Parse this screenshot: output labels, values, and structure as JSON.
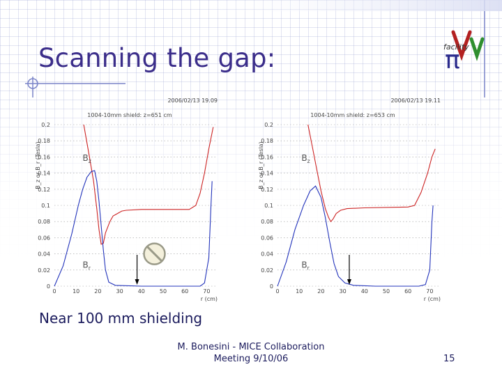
{
  "slide": {
    "title": "Scanning the gap:",
    "caption": "Near 100 mm shielding",
    "footer_line1": "M. Bonesini - MICE Collaboration",
    "footer_line2": "Meeting 9/10/06",
    "page_number": "15",
    "logo_text": "facility",
    "logo_symbol": "π"
  },
  "colors": {
    "title": "#3b2d8a",
    "bz": "#cc2222",
    "br": "#2233bb",
    "arrow": "#000000"
  },
  "chart_data": [
    {
      "type": "line",
      "timestamp": "2006/02/13 19.09",
      "plot_title": "1004-10mm shield: z=651 cm",
      "ylabel": "B_z or B_r (Tesla)",
      "xlabel": "r (cm)",
      "ylim": [
        0,
        0.2
      ],
      "xlim": [
        0,
        75
      ],
      "yticks": [
        "0.2",
        "0.18",
        "0.16",
        "0.14",
        "0.12",
        "0.1",
        "0.08",
        "0.06",
        "0.04",
        "0.02",
        "0"
      ],
      "xticks": [
        "0",
        "10",
        "20",
        "30",
        "40",
        "50",
        "60",
        "70"
      ],
      "arrow_at_r": 38,
      "symbol_at": [
        46,
        0.04
      ],
      "series": [
        {
          "name": "Bz",
          "label": "B_z",
          "color": "#cc2222",
          "label_at": [
            13,
            0.155
          ],
          "points": [
            [
              13.5,
              0.2
            ],
            [
              16,
              0.162
            ],
            [
              18,
              0.13
            ],
            [
              19.5,
              0.096
            ],
            [
              20.5,
              0.07
            ],
            [
              21.5,
              0.052
            ],
            [
              22.5,
              0.053
            ],
            [
              23.5,
              0.066
            ],
            [
              25.5,
              0.08
            ],
            [
              27,
              0.087
            ],
            [
              29,
              0.09
            ],
            [
              31,
              0.093
            ],
            [
              33,
              0.094
            ],
            [
              40,
              0.095
            ],
            [
              55,
              0.095
            ],
            [
              62,
              0.095
            ],
            [
              65,
              0.1
            ],
            [
              67,
              0.115
            ],
            [
              69,
              0.14
            ],
            [
              71,
              0.17
            ],
            [
              73,
              0.197
            ]
          ]
        },
        {
          "name": "Br",
          "label": "B_r",
          "color": "#2233bb",
          "label_at": [
            13,
            0.023
          ],
          "points": [
            [
              0,
              0
            ],
            [
              4,
              0.025
            ],
            [
              8,
              0.065
            ],
            [
              11,
              0.1
            ],
            [
              13,
              0.12
            ],
            [
              15,
              0.135
            ],
            [
              17,
              0.142
            ],
            [
              18.5,
              0.143
            ],
            [
              19.5,
              0.13
            ],
            [
              20.5,
              0.105
            ],
            [
              21.5,
              0.075
            ],
            [
              22.5,
              0.045
            ],
            [
              23.5,
              0.02
            ],
            [
              25,
              0.005
            ],
            [
              28,
              0.001
            ],
            [
              40,
              0
            ],
            [
              60,
              0
            ],
            [
              67,
              0
            ],
            [
              69,
              0.004
            ],
            [
              71,
              0.035
            ],
            [
              72,
              0.1
            ],
            [
              72.5,
              0.13
            ]
          ]
        }
      ]
    },
    {
      "type": "line",
      "timestamp": "2006/02/13 19.11",
      "plot_title": "1004-10mm shield: z=653 cm",
      "ylabel": "B_z or B_r (Tesla)",
      "xlabel": "r (cm)",
      "ylim": [
        0,
        0.2
      ],
      "xlim": [
        0,
        75
      ],
      "yticks": [
        "0.2",
        "0.18",
        "0.16",
        "0.14",
        "0.12",
        "0.1",
        "0.08",
        "0.06",
        "0.04",
        "0.02",
        "0"
      ],
      "xticks": [
        "0",
        "10",
        "20",
        "30",
        "40",
        "50",
        "60",
        "70"
      ],
      "arrow_at_r": 33,
      "series": [
        {
          "name": "Bz",
          "label": "B_z",
          "color": "#cc2222",
          "label_at": [
            11,
            0.155
          ],
          "points": [
            [
              14,
              0.2
            ],
            [
              16,
              0.173
            ],
            [
              18,
              0.145
            ],
            [
              20,
              0.118
            ],
            [
              22,
              0.096
            ],
            [
              23.5,
              0.085
            ],
            [
              24.5,
              0.08
            ],
            [
              25.5,
              0.083
            ],
            [
              27,
              0.09
            ],
            [
              29,
              0.094
            ],
            [
              32,
              0.096
            ],
            [
              40,
              0.097
            ],
            [
              60,
              0.098
            ],
            [
              63,
              0.1
            ],
            [
              66,
              0.116
            ],
            [
              69,
              0.14
            ],
            [
              71,
              0.16
            ],
            [
              72.5,
              0.17
            ]
          ]
        },
        {
          "name": "Br",
          "label": "B_r",
          "color": "#2233bb",
          "label_at": [
            11,
            0.023
          ],
          "points": [
            [
              0,
              0
            ],
            [
              4,
              0.03
            ],
            [
              8,
              0.07
            ],
            [
              12,
              0.1
            ],
            [
              15,
              0.118
            ],
            [
              17.5,
              0.124
            ],
            [
              20,
              0.11
            ],
            [
              22,
              0.085
            ],
            [
              24,
              0.055
            ],
            [
              26,
              0.028
            ],
            [
              28,
              0.012
            ],
            [
              31,
              0.004
            ],
            [
              35,
              0.001
            ],
            [
              45,
              0
            ],
            [
              65,
              0
            ],
            [
              68,
              0.002
            ],
            [
              70,
              0.02
            ],
            [
              71,
              0.08
            ],
            [
              71.5,
              0.1
            ]
          ]
        }
      ]
    }
  ]
}
